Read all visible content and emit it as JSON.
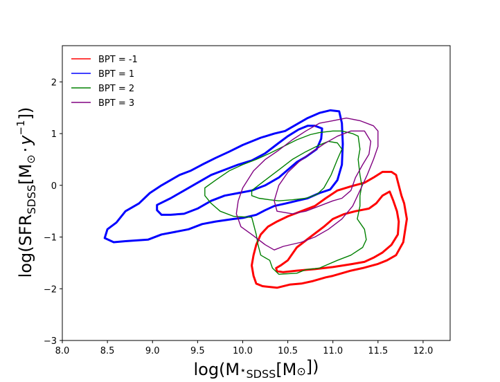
{
  "chart_data": {
    "type": "line",
    "title": "",
    "xlabel": {
      "main": "log(M",
      "star": "⋆",
      "sub": "SDSS",
      "rest": "[M",
      "sun": "⊙",
      "close": "])"
    },
    "ylabel": {
      "main": "log(SFR",
      "sub": "SDSS",
      "rest": "[M",
      "sun": "⊙",
      "dot": "·",
      "y": "y",
      "exp": "−1",
      "close": "])"
    },
    "xlim": [
      8.0,
      12.3
    ],
    "ylim": [
      -3.0,
      2.7
    ],
    "xticks": [
      8.0,
      8.5,
      9.0,
      9.5,
      10.0,
      10.5,
      11.0,
      11.5,
      12.0
    ],
    "xtick_labels": [
      "8.0",
      "8.5",
      "9.0",
      "9.5",
      "10.0",
      "10.5",
      "11.0",
      "11.5",
      "12.0"
    ],
    "yticks": [
      -3,
      -2,
      -1,
      0,
      1,
      2
    ],
    "ytick_labels": [
      "−3",
      "−2",
      "−1",
      "0",
      "1",
      "2"
    ],
    "legend_position": "top-left",
    "grid": false,
    "series": [
      {
        "name": "BPT = -1",
        "color": "#ff0000",
        "line_width": 3,
        "contours": [
          [
            [
              10.12,
              -1.75
            ],
            [
              10.15,
              -1.9
            ],
            [
              10.22,
              -1.95
            ],
            [
              10.38,
              -1.98
            ],
            [
              10.52,
              -1.92
            ],
            [
              10.65,
              -1.9
            ],
            [
              10.78,
              -1.85
            ],
            [
              10.92,
              -1.78
            ],
            [
              11.0,
              -1.75
            ],
            [
              11.1,
              -1.7
            ],
            [
              11.2,
              -1.65
            ],
            [
              11.33,
              -1.6
            ],
            [
              11.5,
              -1.52
            ],
            [
              11.6,
              -1.45
            ],
            [
              11.7,
              -1.35
            ],
            [
              11.78,
              -1.1
            ],
            [
              11.82,
              -0.65
            ],
            [
              11.79,
              -0.35
            ],
            [
              11.76,
              -0.2
            ],
            [
              11.73,
              0.0
            ],
            [
              11.7,
              0.2
            ],
            [
              11.65,
              0.26
            ],
            [
              11.55,
              0.26
            ],
            [
              11.45,
              0.15
            ],
            [
              11.35,
              0.05
            ],
            [
              11.2,
              -0.02
            ],
            [
              11.05,
              -0.1
            ],
            [
              10.92,
              -0.25
            ],
            [
              10.8,
              -0.4
            ],
            [
              10.65,
              -0.5
            ],
            [
              10.5,
              -0.6
            ],
            [
              10.38,
              -0.7
            ],
            [
              10.28,
              -0.8
            ],
            [
              10.2,
              -0.95
            ],
            [
              10.15,
              -1.15
            ],
            [
              10.12,
              -1.35
            ],
            [
              10.1,
              -1.55
            ],
            [
              10.12,
              -1.75
            ]
          ],
          [
            [
              10.37,
              -1.6
            ],
            [
              10.42,
              -1.55
            ],
            [
              10.5,
              -1.45
            ],
            [
              10.6,
              -1.2
            ],
            [
              10.75,
              -1.0
            ],
            [
              10.9,
              -0.8
            ],
            [
              11.0,
              -0.65
            ],
            [
              11.12,
              -0.56
            ],
            [
              11.25,
              -0.5
            ],
            [
              11.4,
              -0.45
            ],
            [
              11.48,
              -0.35
            ],
            [
              11.55,
              -0.2
            ],
            [
              11.63,
              -0.12
            ],
            [
              11.67,
              -0.3
            ],
            [
              11.71,
              -0.5
            ],
            [
              11.73,
              -0.7
            ],
            [
              11.72,
              -0.95
            ],
            [
              11.65,
              -1.15
            ],
            [
              11.55,
              -1.3
            ],
            [
              11.45,
              -1.4
            ],
            [
              11.35,
              -1.48
            ],
            [
              11.22,
              -1.52
            ],
            [
              11.0,
              -1.58
            ],
            [
              10.8,
              -1.62
            ],
            [
              10.6,
              -1.65
            ],
            [
              10.45,
              -1.68
            ],
            [
              10.38,
              -1.66
            ],
            [
              10.37,
              -1.6
            ]
          ]
        ]
      },
      {
        "name": "BPT = 1",
        "color": "#0000ff",
        "line_width": 3,
        "contours": [
          [
            [
              8.47,
              -1.02
            ],
            [
              8.5,
              -0.85
            ],
            [
              8.6,
              -0.72
            ],
            [
              8.7,
              -0.5
            ],
            [
              8.85,
              -0.35
            ],
            [
              8.97,
              -0.15
            ],
            [
              9.1,
              0.0
            ],
            [
              9.2,
              0.1
            ],
            [
              9.3,
              0.2
            ],
            [
              9.42,
              0.28
            ],
            [
              9.55,
              0.4
            ],
            [
              9.7,
              0.53
            ],
            [
              9.85,
              0.65
            ],
            [
              10.0,
              0.78
            ],
            [
              10.2,
              0.92
            ],
            [
              10.35,
              1.0
            ],
            [
              10.47,
              1.05
            ],
            [
              10.6,
              1.18
            ],
            [
              10.72,
              1.3
            ],
            [
              10.85,
              1.4
            ],
            [
              10.97,
              1.45
            ],
            [
              11.07,
              1.43
            ],
            [
              11.1,
              1.2
            ],
            [
              11.11,
              0.8
            ],
            [
              11.1,
              0.4
            ],
            [
              11.05,
              0.1
            ],
            [
              10.97,
              -0.08
            ],
            [
              10.85,
              -0.15
            ],
            [
              10.72,
              -0.25
            ],
            [
              10.6,
              -0.3
            ],
            [
              10.48,
              -0.35
            ],
            [
              10.35,
              -0.4
            ],
            [
              10.25,
              -0.48
            ],
            [
              10.15,
              -0.57
            ],
            [
              10.0,
              -0.63
            ],
            [
              9.9,
              -0.65
            ],
            [
              9.7,
              -0.7
            ],
            [
              9.55,
              -0.75
            ],
            [
              9.4,
              -0.85
            ],
            [
              9.25,
              -0.9
            ],
            [
              9.1,
              -0.95
            ],
            [
              8.95,
              -1.05
            ],
            [
              8.7,
              -1.08
            ],
            [
              8.57,
              -1.1
            ],
            [
              8.47,
              -1.02
            ]
          ],
          [
            [
              9.05,
              -0.38
            ],
            [
              9.2,
              -0.25
            ],
            [
              9.35,
              -0.1
            ],
            [
              9.5,
              0.05
            ],
            [
              9.65,
              0.2
            ],
            [
              9.8,
              0.3
            ],
            [
              9.95,
              0.4
            ],
            [
              10.1,
              0.48
            ],
            [
              10.25,
              0.62
            ],
            [
              10.4,
              0.82
            ],
            [
              10.5,
              0.95
            ],
            [
              10.62,
              1.08
            ],
            [
              10.72,
              1.15
            ],
            [
              10.8,
              1.15
            ],
            [
              10.88,
              1.1
            ],
            [
              10.87,
              0.9
            ],
            [
              10.82,
              0.7
            ],
            [
              10.7,
              0.55
            ],
            [
              10.6,
              0.45
            ],
            [
              10.5,
              0.3
            ],
            [
              10.4,
              0.15
            ],
            [
              10.25,
              0.0
            ],
            [
              10.1,
              -0.1
            ],
            [
              9.95,
              -0.15
            ],
            [
              9.8,
              -0.2
            ],
            [
              9.65,
              -0.3
            ],
            [
              9.5,
              -0.45
            ],
            [
              9.35,
              -0.55
            ],
            [
              9.2,
              -0.57
            ],
            [
              9.1,
              -0.57
            ],
            [
              9.05,
              -0.48
            ],
            [
              9.05,
              -0.38
            ]
          ]
        ]
      },
      {
        "name": "BPT = 2",
        "color": "#008000",
        "line_width": 1.4,
        "contours": [
          [
            [
              9.58,
              -0.05
            ],
            [
              9.7,
              0.1
            ],
            [
              9.85,
              0.28
            ],
            [
              10.0,
              0.4
            ],
            [
              10.15,
              0.5
            ],
            [
              10.3,
              0.62
            ],
            [
              10.45,
              0.75
            ],
            [
              10.6,
              0.88
            ],
            [
              10.75,
              0.98
            ],
            [
              10.85,
              1.02
            ],
            [
              11.0,
              1.05
            ],
            [
              11.1,
              1.05
            ],
            [
              11.22,
              1.0
            ],
            [
              11.28,
              0.95
            ],
            [
              11.3,
              0.7
            ],
            [
              11.28,
              0.5
            ],
            [
              11.3,
              0.2
            ],
            [
              11.32,
              0.0
            ],
            [
              11.3,
              -0.2
            ],
            [
              11.3,
              -0.4
            ],
            [
              11.27,
              -0.65
            ],
            [
              11.35,
              -0.85
            ],
            [
              11.37,
              -1.05
            ],
            [
              11.33,
              -1.2
            ],
            [
              11.2,
              -1.35
            ],
            [
              11.05,
              -1.45
            ],
            [
              10.85,
              -1.6
            ],
            [
              10.7,
              -1.63
            ],
            [
              10.6,
              -1.7
            ],
            [
              10.4,
              -1.72
            ],
            [
              10.33,
              -1.6
            ],
            [
              10.3,
              -1.45
            ],
            [
              10.2,
              -1.35
            ],
            [
              10.17,
              -1.15
            ],
            [
              10.15,
              -0.95
            ],
            [
              10.12,
              -0.75
            ],
            [
              10.1,
              -0.62
            ],
            [
              9.9,
              -0.6
            ],
            [
              9.75,
              -0.5
            ],
            [
              9.65,
              -0.35
            ],
            [
              9.58,
              -0.2
            ],
            [
              9.58,
              -0.05
            ]
          ],
          [
            [
              10.1,
              -0.1
            ],
            [
              10.25,
              0.1
            ],
            [
              10.4,
              0.3
            ],
            [
              10.55,
              0.5
            ],
            [
              10.7,
              0.65
            ],
            [
              10.85,
              0.78
            ],
            [
              10.95,
              0.85
            ],
            [
              11.05,
              0.82
            ],
            [
              11.1,
              0.7
            ],
            [
              11.05,
              0.5
            ],
            [
              10.98,
              0.2
            ],
            [
              10.9,
              -0.05
            ],
            [
              10.82,
              -0.18
            ],
            [
              10.7,
              -0.25
            ],
            [
              10.55,
              -0.28
            ],
            [
              10.4,
              -0.3
            ],
            [
              10.3,
              -0.28
            ],
            [
              10.18,
              -0.25
            ],
            [
              10.1,
              -0.2
            ],
            [
              10.1,
              -0.1
            ]
          ]
        ]
      },
      {
        "name": "BPT = 3",
        "color": "#800080",
        "line_width": 1.4,
        "contours": [
          [
            [
              9.93,
              -0.55
            ],
            [
              9.95,
              -0.3
            ],
            [
              10.0,
              -0.05
            ],
            [
              10.12,
              0.28
            ],
            [
              10.25,
              0.5
            ],
            [
              10.4,
              0.68
            ],
            [
              10.55,
              0.88
            ],
            [
              10.7,
              1.05
            ],
            [
              10.85,
              1.2
            ],
            [
              11.0,
              1.25
            ],
            [
              11.15,
              1.3
            ],
            [
              11.3,
              1.25
            ],
            [
              11.45,
              1.15
            ],
            [
              11.5,
              1.05
            ],
            [
              11.5,
              0.75
            ],
            [
              11.45,
              0.5
            ],
            [
              11.38,
              0.2
            ],
            [
              11.3,
              -0.1
            ],
            [
              11.22,
              -0.4
            ],
            [
              11.1,
              -0.65
            ],
            [
              10.95,
              -0.85
            ],
            [
              10.8,
              -1.0
            ],
            [
              10.65,
              -1.1
            ],
            [
              10.45,
              -1.18
            ],
            [
              10.35,
              -1.25
            ],
            [
              10.25,
              -1.15
            ],
            [
              10.1,
              -0.95
            ],
            [
              9.98,
              -0.8
            ],
            [
              9.93,
              -0.55
            ]
          ],
          [
            [
              10.38,
              -0.5
            ],
            [
              10.35,
              -0.3
            ],
            [
              10.4,
              0.0
            ],
            [
              10.5,
              0.25
            ],
            [
              10.62,
              0.45
            ],
            [
              10.75,
              0.62
            ],
            [
              10.9,
              0.8
            ],
            [
              11.05,
              0.95
            ],
            [
              11.2,
              1.05
            ],
            [
              11.35,
              1.05
            ],
            [
              11.42,
              0.85
            ],
            [
              11.4,
              0.6
            ],
            [
              11.33,
              0.4
            ],
            [
              11.25,
              0.15
            ],
            [
              11.2,
              -0.1
            ],
            [
              11.1,
              -0.25
            ],
            [
              11.0,
              -0.3
            ],
            [
              10.85,
              -0.4
            ],
            [
              10.7,
              -0.5
            ],
            [
              10.55,
              -0.55
            ],
            [
              10.38,
              -0.5
            ]
          ]
        ]
      }
    ]
  }
}
